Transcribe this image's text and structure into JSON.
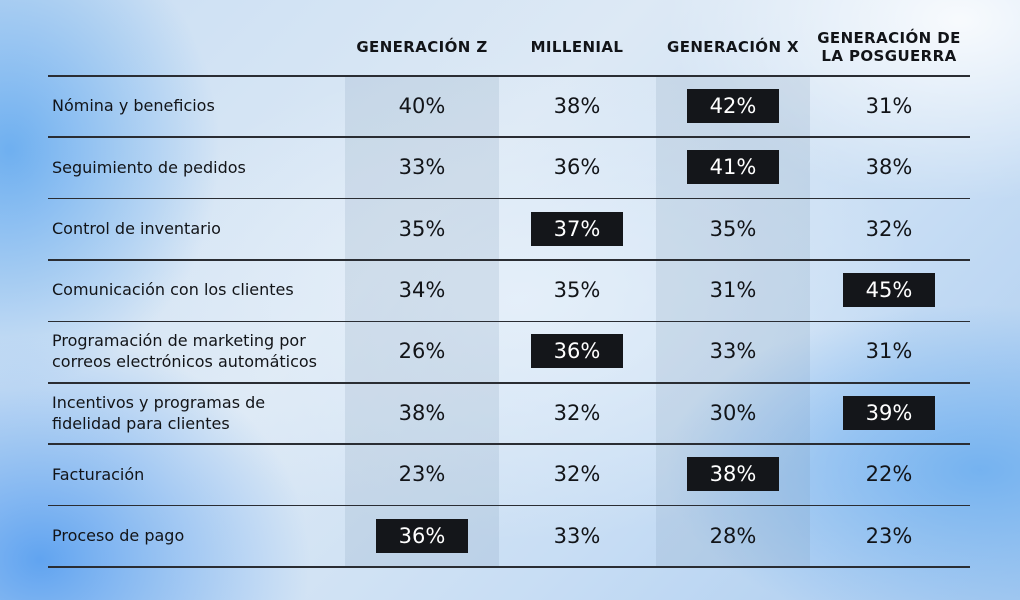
{
  "chart_data": {
    "type": "table",
    "columns": [
      "GENERACIÓN Z",
      "MILLENIAL",
      "GENERACIÓN X",
      "GENERACIÓN DE\nLA POSGUERRA"
    ],
    "rows": [
      {
        "label": "Nómina y beneficios",
        "values": [
          "40%",
          "38%",
          "42%",
          "31%"
        ],
        "highlight": 2
      },
      {
        "label": "Seguimiento de pedidos",
        "values": [
          "33%",
          "36%",
          "41%",
          "38%"
        ],
        "highlight": 2
      },
      {
        "label": "Control de inventario",
        "values": [
          "35%",
          "37%",
          "35%",
          "32%"
        ],
        "highlight": 1
      },
      {
        "label": "Comunicación con los clientes",
        "values": [
          "34%",
          "35%",
          "31%",
          "45%"
        ],
        "highlight": 3
      },
      {
        "label": "Programación de marketing por\ncorreos electrónicos automáticos",
        "values": [
          "26%",
          "36%",
          "33%",
          "31%"
        ],
        "highlight": 1
      },
      {
        "label": "Incentivos y programas de\nfidelidad para clientes",
        "values": [
          "38%",
          "32%",
          "30%",
          "39%"
        ],
        "highlight": 3
      },
      {
        "label": "Facturación",
        "values": [
          "23%",
          "32%",
          "38%",
          "22%"
        ],
        "highlight": 2
      },
      {
        "label": "Proceso de pago",
        "values": [
          "36%",
          "33%",
          "28%",
          "23%"
        ],
        "highlight": 0
      }
    ],
    "shaded_columns": [
      0,
      2
    ],
    "colors": {
      "text": "#121418",
      "highlight_bg": "#14161a",
      "highlight_text": "#ffffff",
      "rule": "#2a2d33"
    }
  }
}
